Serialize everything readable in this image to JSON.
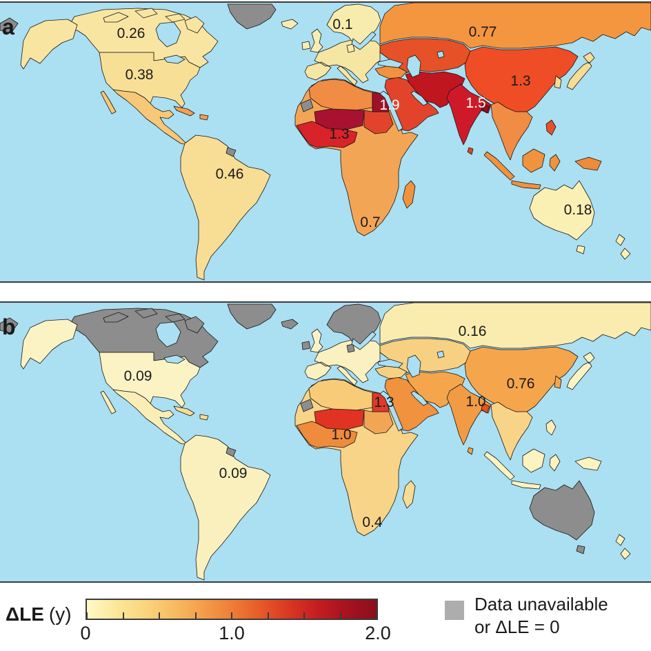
{
  "figure_type": "choropleth-world-maps",
  "panels": [
    {
      "id": "a",
      "letter": "a",
      "labels": [
        {
          "region": "canada",
          "value": "0.26",
          "color": "#1a1a1a"
        },
        {
          "region": "usa",
          "value": "0.38",
          "color": "#1a1a1a"
        },
        {
          "region": "south_america",
          "value": "0.46",
          "color": "#1a1a1a"
        },
        {
          "region": "europe",
          "value": "0.1",
          "color": "#1a1a1a"
        },
        {
          "region": "russia",
          "value": "0.77",
          "color": "#1a1a1a"
        },
        {
          "region": "egypt",
          "value": "1.9",
          "color": "#ffffff"
        },
        {
          "region": "west_africa",
          "value": "1.3",
          "color": "#1a1a1a"
        },
        {
          "region": "india",
          "value": "1.5",
          "color": "#ffffff"
        },
        {
          "region": "china",
          "value": "1.3",
          "color": "#1a1a1a"
        },
        {
          "region": "south_africa",
          "value": "0.7",
          "color": "#1a1a1a"
        },
        {
          "region": "australia",
          "value": "0.18",
          "color": "#1a1a1a"
        }
      ]
    },
    {
      "id": "b",
      "letter": "b",
      "labels": [
        {
          "region": "usa",
          "value": "0.09",
          "color": "#1a1a1a"
        },
        {
          "region": "south_america",
          "value": "0.09",
          "color": "#1a1a1a"
        },
        {
          "region": "russia",
          "value": "0.16",
          "color": "#1a1a1a"
        },
        {
          "region": "china",
          "value": "0.76",
          "color": "#1a1a1a"
        },
        {
          "region": "india",
          "value": "1.0",
          "color": "#1a1a1a"
        },
        {
          "region": "egypt",
          "value": "1.3",
          "color": "#1a1a1a"
        },
        {
          "region": "west_africa",
          "value": "1.0",
          "color": "#1a1a1a"
        },
        {
          "region": "south_africa",
          "value": "0.4",
          "color": "#1a1a1a"
        }
      ]
    }
  ],
  "legend": {
    "title_bold": "ΔLE",
    "title_unit": "(y)",
    "colorbar": {
      "min": 0,
      "max": 2,
      "min_label": "0",
      "mid_label": "1.0",
      "max_label": "2.0",
      "gradient": [
        "#FFF9C6",
        "#FCE79A",
        "#FAD57E",
        "#F7BC62",
        "#F39E4B",
        "#EE7E36",
        "#E65A28",
        "#D93623",
        "#C31D20",
        "#A61220",
        "#8B0E1C"
      ]
    },
    "no_data": {
      "swatch_color": "#ADADAD",
      "line1": "Data unavailable",
      "line2": "or ΔLE = 0"
    }
  },
  "colors": {
    "ocean": "#ABDFF2",
    "no_data_map": "#8D8D8D",
    "land_border": "#151515",
    "panel_border": "#3A3A3A"
  },
  "map_values": {
    "a": {
      "canada": 0.26,
      "usa": 0.38,
      "south_america": 0.46,
      "europe": 0.1,
      "russia": 0.77,
      "egypt": 1.9,
      "west_africa": 1.3,
      "india": 1.5,
      "china": 1.3,
      "south_africa": 0.7,
      "australia": 0.18
    },
    "b": {
      "usa": 0.09,
      "south_america": 0.09,
      "russia": 0.16,
      "china": 0.76,
      "india": 1.0,
      "egypt": 1.3,
      "west_africa": 1.0,
      "south_africa": 0.4
    }
  },
  "region_fills": {
    "a": {
      "chukotka": "#8D8D8D",
      "alaska": "#F9E5A2",
      "canada": "#F9E5A2",
      "arctic_islands": "#F9E5A2",
      "baffin": "#F9E5A2",
      "greenland": "#8D8D8D",
      "iceland": "#F7EDB4",
      "usa": "#F8DF96",
      "baja": "#F6C877",
      "mexico": "#F6C877",
      "cuba": "#F2A150",
      "hispaniola": "#F2A150",
      "south_america": "#F8DD95",
      "french_guiana": "#8D8D8D",
      "uk": "#F7EDB4",
      "ireland": "#F7EDB4",
      "scandinavia": "#F7ECAE",
      "denmark": "#F7ECAE",
      "europe": "#F6E6A3",
      "turkey": "#F0923E",
      "middle_east": "#E2442B",
      "iran_stan": "#C0161F",
      "central_asia": "#E65127",
      "russia": "#F4963F",
      "china": "#EE4D26",
      "korea": "#F8DC94",
      "japan": "#F8DC94",
      "india": "#CE1A28",
      "bangladesh": "#8E0E22",
      "sri_lanka": "#E2442B",
      "se_asia": "#F08C44",
      "indonesia": "#F0933F",
      "philippines": "#E65127",
      "new_guinea": "#ED8B3B",
      "australia": "#FBF0B4",
      "tasmania": "#FBF0B4",
      "new_zealand": "#FBF0B4",
      "africa": "#F3A556",
      "madagascar": "#F0933F",
      "north_africa": "#F08C44",
      "western_sahara": "#8D8D8D",
      "mali_niger": "#A81230",
      "egypt": "#9E1129",
      "sudan_chad": "#E2442B",
      "west_africa": "#D8232A"
    },
    "b": {
      "chukotka": "#8D8D8D",
      "alaska": "#FBF3C4",
      "canada": "#8D8D8D",
      "arctic_islands": "#8D8D8D",
      "baffin": "#8D8D8D",
      "greenland": "#8D8D8D",
      "iceland": "#8D8D8D",
      "usa": "#FBF3C4",
      "baja": "#FAEDB6",
      "mexico": "#FAEDB6",
      "cuba": "#F8DC94",
      "hispaniola": "#F8DC94",
      "south_america": "#FAF0BE",
      "french_guiana": "#8D8D8D",
      "uk": "#FBF3C8",
      "ireland": "#8D8D8D",
      "scandinavia": "#8D8D8D",
      "denmark": "#8D8D8D",
      "europe": "#FAF0C0",
      "turkey": "#F8D082",
      "middle_east": "#F0923E",
      "iran_stan": "#F5A54C",
      "central_asia": "#F8D082",
      "russia": "#F9ECAE",
      "china": "#F5A54C",
      "korea": "#F5A54C",
      "japan": "#FBF3C4",
      "india": "#F29B45",
      "bangladesh": "#E65127",
      "sri_lanka": "#F5A54C",
      "se_asia": "#F8D488",
      "indonesia": "#FBF3C0",
      "philippines": "#FAEDB6",
      "new_guinea": "#FBF3C0",
      "australia": "#8D8D8D",
      "tasmania": "#8D8D8D",
      "new_zealand": "#FAF0BE",
      "africa": "#F8D488",
      "madagascar": "#F8DC94",
      "north_africa": "#F8CB78",
      "western_sahara": "#8D8D8D",
      "mali_niger": "#E03324",
      "egypt": "#DE3A28",
      "sudan_chad": "#F3A556",
      "west_africa": "#EF8B3C"
    }
  }
}
